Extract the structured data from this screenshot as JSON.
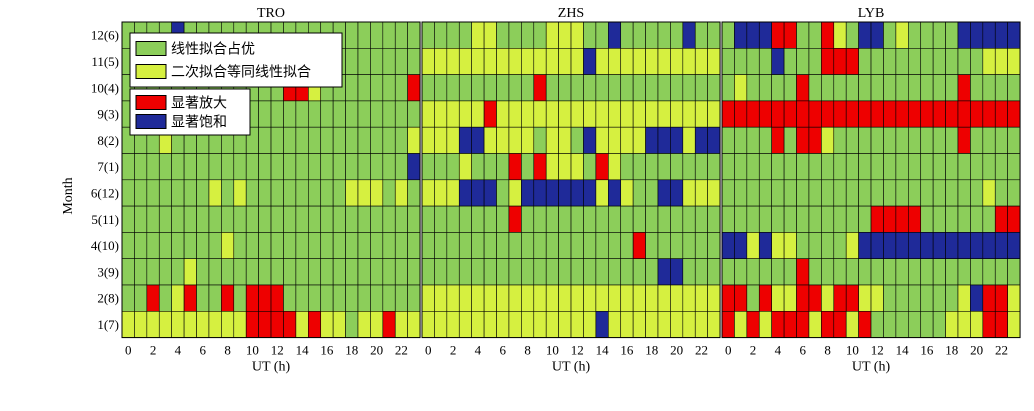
{
  "chart_data": {
    "type": "heatmap",
    "ylabel": "Month",
    "xlabel": "UT (h)",
    "x_hours": [
      0,
      1,
      2,
      3,
      4,
      5,
      6,
      7,
      8,
      9,
      10,
      11,
      12,
      13,
      14,
      15,
      16,
      17,
      18,
      19,
      20,
      21,
      22,
      23
    ],
    "x_tick_labels": [
      "0",
      "2",
      "4",
      "6",
      "8",
      "10",
      "12",
      "14",
      "16",
      "18",
      "20",
      "22"
    ],
    "y_tick_labels": [
      "12(6)",
      "11(5)",
      "10(4)",
      "9(3)",
      "8(2)",
      "7(1)",
      "6(12)",
      "5(11)",
      "4(10)",
      "3(9)",
      "2(8)",
      "1(7)"
    ],
    "categories": {
      "G": {
        "label": "线性拟合占优",
        "color": "#8cce5a"
      },
      "Y": {
        "label": "二次拟合等同线性拟合",
        "color": "#d6f040"
      },
      "R": {
        "label": "显著放大",
        "color": "#ee0000"
      },
      "B": {
        "label": "显著饱和",
        "color": "#1f2a99"
      }
    },
    "legend_groups": [
      [
        "G",
        "Y"
      ],
      [
        "R",
        "B"
      ]
    ],
    "panels": [
      {
        "title": "TRO",
        "rows": [
          "GGGGBGGGGGGGGGGGGGGGGGGG",
          "GGGGGGGGGGGGGGGGGGGGGGGG",
          "GGGGGGGGGGGGGRRYGGGGGGGR",
          "GGGGGGGGGGGGGGGGGGGGGGGG",
          "GGGYGGGGGGGGGGGGGGGGGGGY",
          "GGGGGGGGGGGGGGGGGGGGGGGB",
          "GGGGGGGYGYGGGGGGGGYYYGYG",
          "GGGGGGGGGGGGGGGGGGGGGGGG",
          "GGGGGGGGYGGGGGGGGGGGGGGG",
          "GGGGGYGGGGGGGGGGGGGGGGGG",
          "GGRGYRGGRGRRRGGGGGGGGGGG",
          "YYYYYYYYYYRRRRYRYYGYYRYY"
        ]
      },
      {
        "title": "ZHS",
        "rows": [
          "GGGGYYGGGGYYYGGBGGGGGBGG",
          "YYYYYYYYYYYYYBYYYYYYYYYY",
          "GGGGGGGGGRGGGGGGGGGGGGGG",
          "YYYYYRYYYYYYYYYYYYYYYYYY",
          "YYYBBYYYYGYYGBYYYYBBBYBB",
          "GGGYGGGRGRYYYGRYGGGGGGGG",
          "YYYBBBGYBBBBBBYBYGGBBYYY",
          "GGGGGGGRGGGGGGGGGGGGGGGG",
          "GGGGGGGGGGGGGGGGGRGGGGGG",
          "GGGGGGGGGGGGGGGGGGGBBGGG",
          "YYYYYYYYYYYYYYYYYYYYYYYY",
          "YYYYYYYYYYYYYYBYYYYYYYYY"
        ]
      },
      {
        "title": "LYB",
        "rows": [
          "GBBBRRGGRYGBBGYGGGGBBBBB",
          "GGGGBGGGRRRGGGGGGGGGGYYY",
          "GYGGGGRGGGGGGGGGGGGRGGGG",
          "RRRRRRRRRRRRRRRRRRRRRRRR",
          "GGGGRGRRYGGGGGGGGGGRGGGG",
          "GGGGGGGGGGGGGGGGGGGGGGGG",
          "GGGGGGGGGGGGGGGGGGGGGYGG",
          "GGGGGGGGGGGGRRRRGGGGGGRR",
          "BBYBYYGGGGYBBBBBBBBBBBBB",
          "GGGGGGRGGGGGGGGGGGGGGGGG",
          "RRGRYYRRYRRYYGGGGGGYBRRY",
          "RYRYRRRYRRYRGGGGGGYYYRRY"
        ]
      }
    ]
  }
}
